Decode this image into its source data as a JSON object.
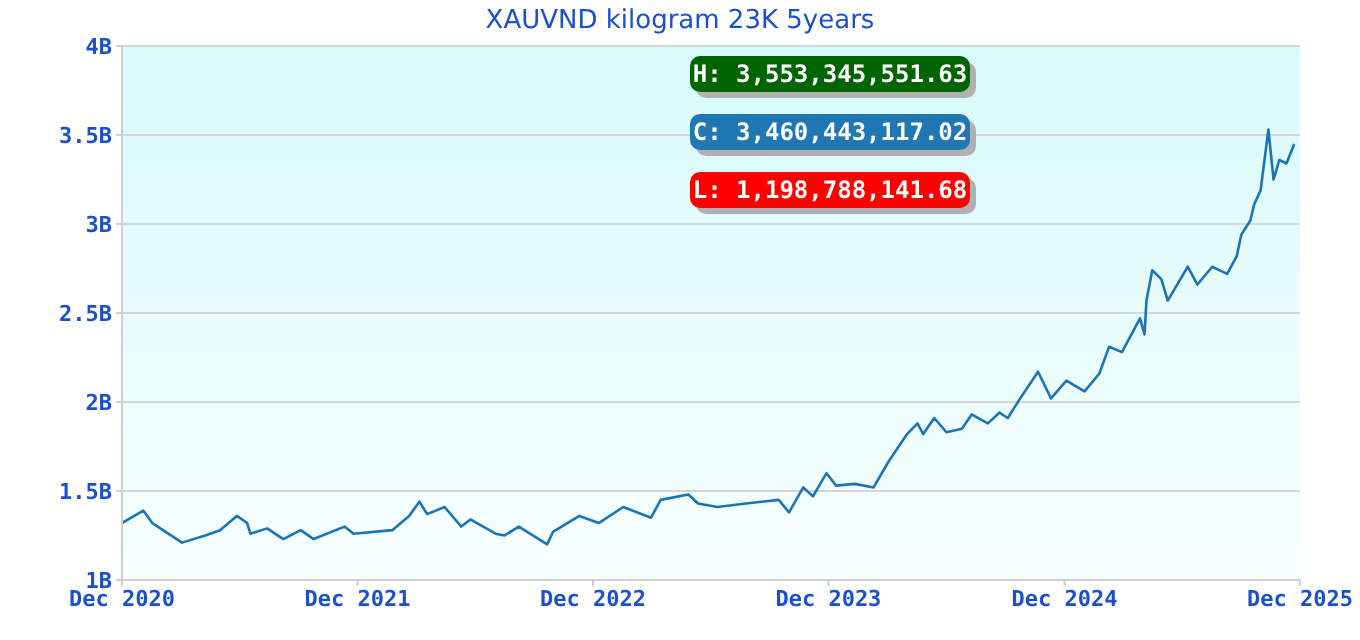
{
  "chart_data": {
    "type": "line",
    "title": "XAUVND kilogram 23K 5years",
    "annotations": [
      "H: 3,553,345,551.63",
      "C: 3,460,443,117.02",
      "L: 1,198,788,141.68"
    ],
    "x": [
      "2020-12-01",
      "2021-01-03",
      "2021-01-17",
      "2021-03-04",
      "2021-04-09",
      "2021-05-02",
      "2021-05-28",
      "2021-06-13",
      "2021-06-18",
      "2021-07-14",
      "2021-08-08",
      "2021-09-04",
      "2021-09-24",
      "2021-11-11",
      "2021-11-25",
      "2022-01-24",
      "2022-02-19",
      "2022-03-07",
      "2022-03-19",
      "2022-04-15",
      "2022-05-11",
      "2022-05-25",
      "2022-07-03",
      "2022-07-17",
      "2022-08-08",
      "2022-09-21",
      "2022-09-30",
      "2022-11-10",
      "2022-12-10",
      "2023-01-17",
      "2023-03-01",
      "2023-03-16",
      "2023-04-28",
      "2023-05-13",
      "2023-06-12",
      "2023-07-26",
      "2023-09-15",
      "2023-10-01",
      "2023-10-23",
      "2023-11-07",
      "2023-11-28",
      "2023-12-13",
      "2024-01-11",
      "2024-02-09",
      "2024-03-04",
      "2024-04-01",
      "2024-04-17",
      "2024-04-26",
      "2024-05-13",
      "2024-06-01",
      "2024-06-25",
      "2024-07-10",
      "2024-08-04",
      "2024-08-22",
      "2024-09-04",
      "2024-09-25",
      "2024-10-21",
      "2024-11-10",
      "2024-12-04",
      "2025-01-01",
      "2025-01-24",
      "2025-02-08",
      "2025-02-28",
      "2025-03-28",
      "2025-04-04",
      "2025-04-07",
      "2025-04-16",
      "2025-04-30",
      "2025-05-10",
      "2025-06-10",
      "2025-06-25",
      "2025-07-18",
      "2025-08-10",
      "2025-08-25",
      "2025-09-01",
      "2025-09-15",
      "2025-09-21",
      "2025-10-01",
      "2025-10-13",
      "2025-10-21",
      "2025-10-30",
      "2025-11-10",
      "2025-11-22"
    ],
    "series": [
      {
        "color": "#1a75b8",
        "values": [
          1.32,
          1.39,
          1.32,
          1.21,
          1.25,
          1.28,
          1.36,
          1.32,
          1.26,
          1.29,
          1.23,
          1.28,
          1.23,
          1.3,
          1.26,
          1.28,
          1.36,
          1.44,
          1.37,
          1.41,
          1.3,
          1.34,
          1.26,
          1.25,
          1.3,
          1.2,
          1.27,
          1.36,
          1.32,
          1.41,
          1.35,
          1.45,
          1.48,
          1.43,
          1.41,
          1.43,
          1.45,
          1.38,
          1.52,
          1.47,
          1.6,
          1.53,
          1.54,
          1.52,
          1.67,
          1.82,
          1.88,
          1.82,
          1.91,
          1.83,
          1.85,
          1.93,
          1.88,
          1.94,
          1.91,
          2.03,
          2.17,
          2.02,
          2.12,
          2.06,
          2.16,
          2.31,
          2.28,
          2.47,
          2.38,
          2.57,
          2.74,
          2.69,
          2.57,
          2.76,
          2.66,
          2.76,
          2.72,
          2.82,
          2.94,
          3.02,
          3.11,
          3.19,
          3.53,
          3.25,
          3.36,
          3.34,
          3.45
        ]
      }
    ],
    "xlim": [
      "2020-12-01",
      "2025-12-01"
    ],
    "xticks": [
      {
        "value": "2020-12-01",
        "label": "Dec 2020"
      },
      {
        "value": "2021-12-01",
        "label": "Dec 2021"
      },
      {
        "value": "2022-12-01",
        "label": "Dec 2022"
      },
      {
        "value": "2023-12-01",
        "label": "Dec 2023"
      },
      {
        "value": "2024-12-01",
        "label": "Dec 2024"
      },
      {
        "value": "2025-12-01",
        "label": "Dec 2025"
      }
    ],
    "ylim": [
      1,
      4
    ],
    "yticks": [
      {
        "value": 1,
        "label": "1B"
      },
      {
        "value": 1.5,
        "label": "1.5B"
      },
      {
        "value": 2,
        "label": "2B"
      },
      {
        "value": 2.5,
        "label": "2.5B"
      },
      {
        "value": 3,
        "label": "3B"
      },
      {
        "value": 3.5,
        "label": "3.5B"
      },
      {
        "value": 4,
        "label": "4B"
      }
    ],
    "grid": "y"
  }
}
